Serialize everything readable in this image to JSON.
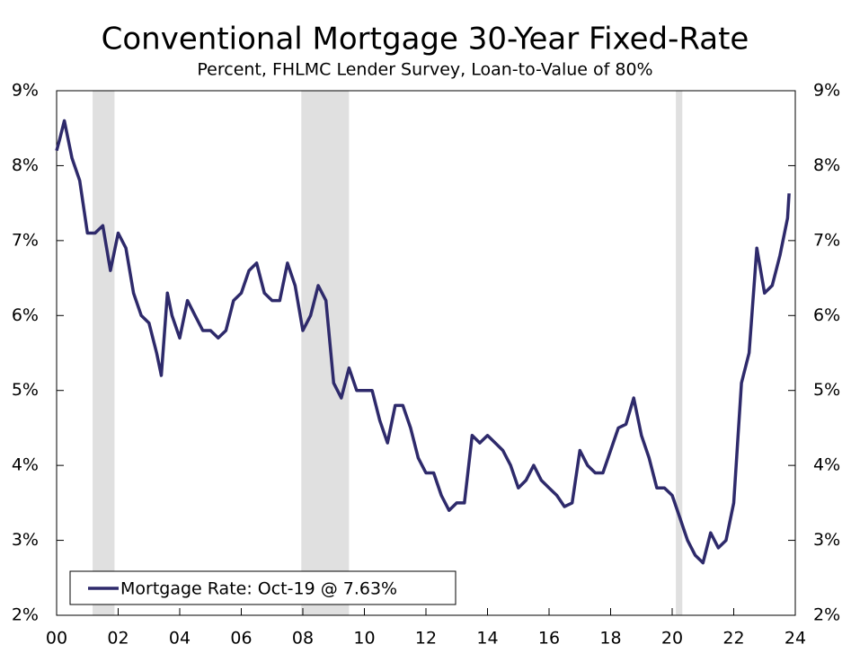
{
  "chart_data": {
    "type": "line",
    "title": "Conventional Mortgage 30-Year Fixed-Rate",
    "subtitle": "Percent, FHLMC Lender Survey, Loan-to-Value of 80%",
    "x": [
      2000,
      2000.1,
      2000.25,
      2000.5,
      2000.75,
      2001,
      2001.25,
      2001.5,
      2001.75,
      2002,
      2002.25,
      2002.5,
      2002.75,
      2003,
      2003.25,
      2003.4,
      2003.6,
      2003.75,
      2004,
      2004.25,
      2004.5,
      2004.75,
      2005,
      2005.25,
      2005.5,
      2005.75,
      2006,
      2006.25,
      2006.5,
      2006.75,
      2007,
      2007.25,
      2007.5,
      2007.75,
      2008,
      2008.25,
      2008.5,
      2008.75,
      2009,
      2009.25,
      2009.5,
      2009.75,
      2010,
      2010.25,
      2010.5,
      2010.75,
      2011,
      2011.25,
      2011.5,
      2011.75,
      2012,
      2012.25,
      2012.5,
      2012.75,
      2013,
      2013.25,
      2013.5,
      2013.75,
      2014,
      2014.25,
      2014.5,
      2014.75,
      2015,
      2015.25,
      2015.5,
      2015.75,
      2016,
      2016.25,
      2016.5,
      2016.75,
      2017,
      2017.25,
      2017.5,
      2017.75,
      2018,
      2018.25,
      2018.5,
      2018.75,
      2019,
      2019.25,
      2019.5,
      2019.75,
      2020,
      2020.25,
      2020.5,
      2020.75,
      2021,
      2021.25,
      2021.5,
      2021.75,
      2022,
      2022.25,
      2022.5,
      2022.75,
      2023,
      2023.25,
      2023.5,
      2023.75,
      2023.8
    ],
    "series": [
      {
        "name": "Mortgage Rate: Oct-19 @ 7.63%",
        "color": "#2e2a6b",
        "values": [
          8.2,
          8.35,
          8.6,
          8.1,
          7.8,
          7.1,
          7.1,
          7.2,
          6.6,
          7.1,
          6.9,
          6.3,
          6.0,
          5.9,
          5.5,
          5.2,
          6.3,
          6.0,
          5.7,
          6.2,
          6.0,
          5.8,
          5.8,
          5.7,
          5.8,
          6.2,
          6.3,
          6.6,
          6.7,
          6.3,
          6.2,
          6.2,
          6.7,
          6.4,
          5.8,
          6.0,
          6.4,
          6.2,
          5.1,
          4.9,
          5.3,
          5.0,
          5.0,
          5.0,
          4.6,
          4.3,
          4.8,
          4.8,
          4.5,
          4.1,
          3.9,
          3.9,
          3.6,
          3.4,
          3.5,
          3.5,
          4.4,
          4.3,
          4.4,
          4.3,
          4.2,
          4.0,
          3.7,
          3.8,
          4.0,
          3.8,
          3.7,
          3.6,
          3.45,
          3.5,
          4.2,
          4.0,
          3.9,
          3.9,
          4.2,
          4.5,
          4.55,
          4.9,
          4.4,
          4.1,
          3.7,
          3.7,
          3.6,
          3.3,
          3.0,
          2.8,
          2.7,
          3.1,
          2.9,
          3.0,
          3.5,
          5.1,
          5.5,
          6.9,
          6.3,
          6.4,
          6.8,
          7.3,
          7.63
        ]
      }
    ],
    "recessions": [
      [
        2001.17,
        2001.88
      ],
      [
        2007.95,
        2009.5
      ],
      [
        2020.12,
        2020.33
      ]
    ],
    "recession_color": "#e0e0e0",
    "xlim": [
      2000,
      2024
    ],
    "xticks": [
      {
        "value": 2000,
        "label": "00"
      },
      {
        "value": 2002,
        "label": "02"
      },
      {
        "value": 2004,
        "label": "04"
      },
      {
        "value": 2006,
        "label": "06"
      },
      {
        "value": 2008,
        "label": "08"
      },
      {
        "value": 2010,
        "label": "10"
      },
      {
        "value": 2012,
        "label": "12"
      },
      {
        "value": 2014,
        "label": "14"
      },
      {
        "value": 2016,
        "label": "16"
      },
      {
        "value": 2018,
        "label": "18"
      },
      {
        "value": 2020,
        "label": "20"
      },
      {
        "value": 2022,
        "label": "22"
      },
      {
        "value": 2024,
        "label": "24"
      }
    ],
    "ylim": [
      2,
      9
    ],
    "yticks": [
      {
        "value": 2,
        "label": "2%"
      },
      {
        "value": 3,
        "label": "3%"
      },
      {
        "value": 4,
        "label": "4%"
      },
      {
        "value": 5,
        "label": "5%"
      },
      {
        "value": 6,
        "label": "6%"
      },
      {
        "value": 7,
        "label": "7%"
      },
      {
        "value": 8,
        "label": "8%"
      },
      {
        "value": 9,
        "label": "9%"
      }
    ],
    "legend": "lower left"
  }
}
